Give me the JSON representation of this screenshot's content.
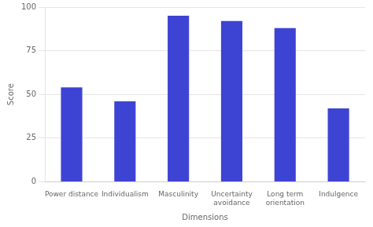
{
  "chart_data": {
    "type": "bar",
    "categories": [
      "Power distance",
      "Individualism",
      "Masculinity",
      "Uncertainty\navoidance",
      "Long term\norientation",
      "Indulgence"
    ],
    "values": [
      54,
      46,
      95,
      92,
      88,
      42
    ],
    "color": "#3d44d4",
    "xlabel": "Dimensions",
    "ylabel": "Score",
    "ylim": [
      0,
      100
    ],
    "yticks": [
      0,
      25,
      50,
      75,
      100
    ],
    "grid": true
  }
}
